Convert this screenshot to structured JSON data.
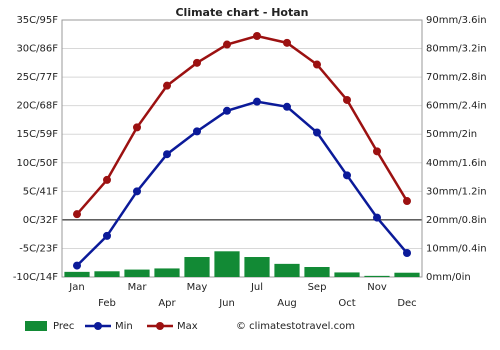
{
  "chart_data": {
    "type": "combo",
    "title": "Climate chart - Hotan",
    "categories": [
      "Jan",
      "Feb",
      "Mar",
      "Apr",
      "May",
      "Jun",
      "Jul",
      "Aug",
      "Sep",
      "Oct",
      "Nov",
      "Dec"
    ],
    "series": [
      {
        "name": "Prec",
        "type": "bar",
        "axis": "y2",
        "color": "#128a35",
        "values": [
          1.8,
          2,
          2.6,
          3,
          7,
          9,
          7,
          4.6,
          3.5,
          1.6,
          0.4,
          1.5
        ]
      },
      {
        "name": "Min",
        "type": "line",
        "color": "#0b1a99",
        "values": [
          -8,
          -2.8,
          5,
          11.5,
          15.5,
          19.1,
          20.7,
          19.8,
          15.3,
          7.8,
          0.4,
          -5.8
        ]
      },
      {
        "name": "Max",
        "type": "line",
        "color": "#9c1111",
        "values": [
          1,
          7,
          16.2,
          23.5,
          27.5,
          30.7,
          32.2,
          31,
          27.2,
          21,
          12,
          3.3
        ]
      }
    ],
    "ylim": [
      -10,
      35
    ],
    "yticks": [
      {
        "value": -10,
        "label": "-10C/14F"
      },
      {
        "value": -5,
        "label": "-5C/23F"
      },
      {
        "value": 0,
        "label": "0C/32F"
      },
      {
        "value": 5,
        "label": "5C/41F"
      },
      {
        "value": 10,
        "label": "10C/50F"
      },
      {
        "value": 15,
        "label": "15C/59F"
      },
      {
        "value": 20,
        "label": "20C/68F"
      },
      {
        "value": 25,
        "label": "25C/77F"
      },
      {
        "value": 30,
        "label": "30C/86F"
      },
      {
        "value": 35,
        "label": "35C/95F"
      }
    ],
    "y2lim": [
      0,
      90
    ],
    "y2ticks": [
      {
        "value": 0,
        "label": "0mm/0in"
      },
      {
        "value": 10,
        "label": "10mm/0.4in"
      },
      {
        "value": 20,
        "label": "20mm/0.8in"
      },
      {
        "value": 30,
        "label": "30mm/1.2in"
      },
      {
        "value": 40,
        "label": "40mm/1.6in"
      },
      {
        "value": 50,
        "label": "50mm/2in"
      },
      {
        "value": 60,
        "label": "60mm/2.4in"
      },
      {
        "value": 70,
        "label": "70mm/2.8in"
      },
      {
        "value": 80,
        "label": "80mm/3.2in"
      },
      {
        "value": 90,
        "label": "90mm/3.6in"
      }
    ],
    "grid": true,
    "legend": "bottom-left",
    "source": "© climatestotravel.com"
  }
}
